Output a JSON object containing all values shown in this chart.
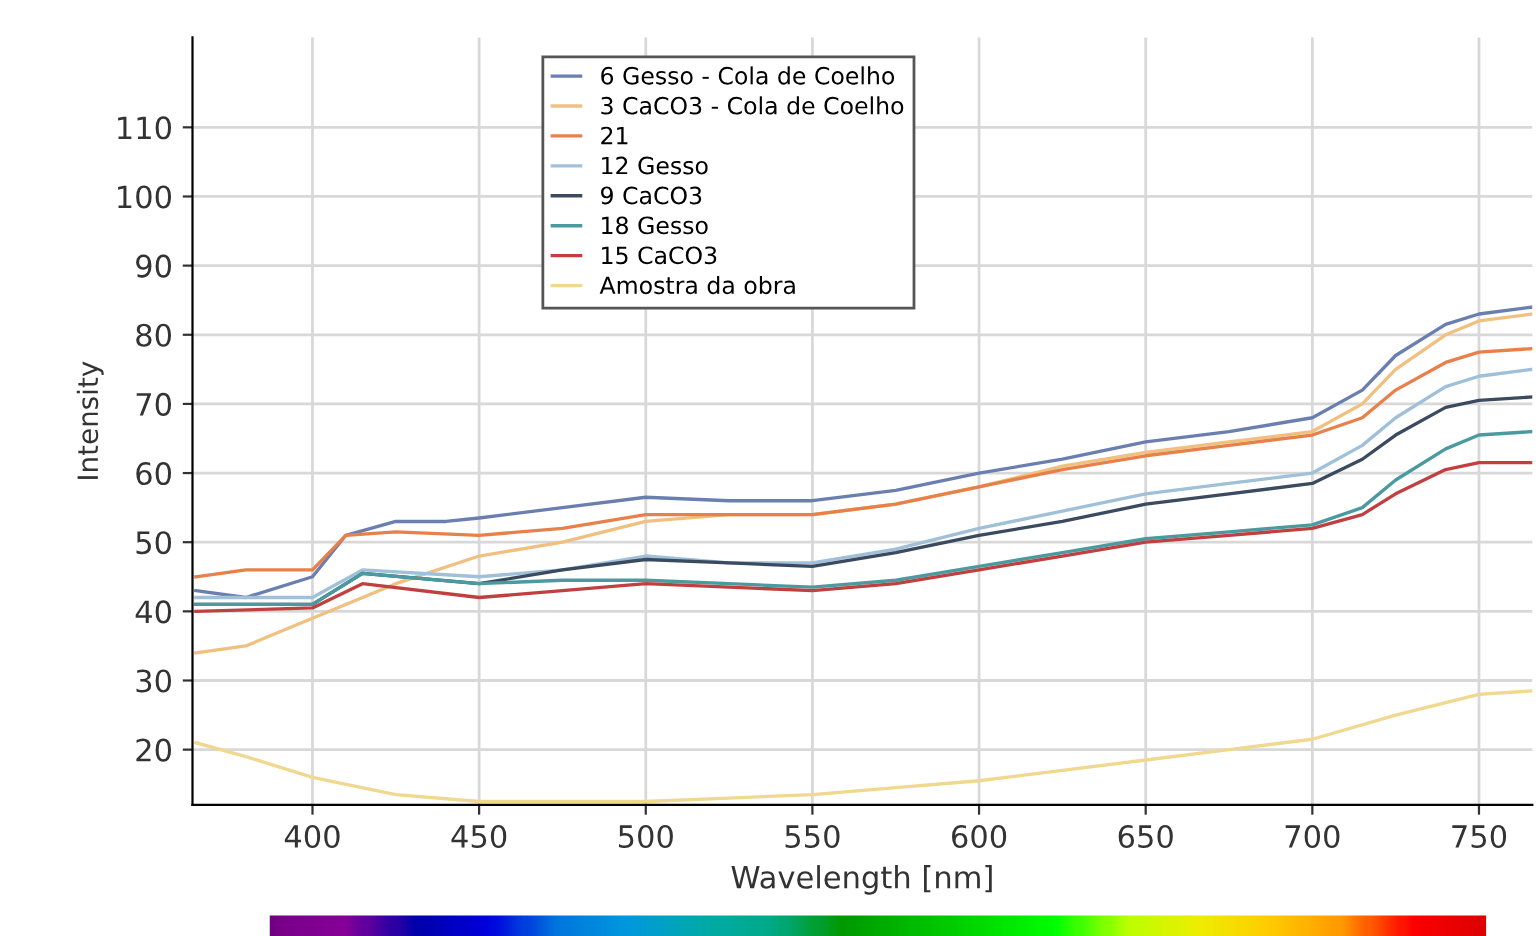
{
  "chart_data": {
    "type": "line",
    "xlabel": "Wavelength [nm]",
    "ylabel": "Intensity",
    "xlim": [
      364,
      766
    ],
    "ylim": [
      12,
      123
    ],
    "xticks": [
      400,
      450,
      500,
      550,
      600,
      650,
      700,
      750
    ],
    "yticks": [
      20,
      30,
      40,
      50,
      60,
      70,
      80,
      90,
      100,
      110
    ],
    "grid": true,
    "legend": "top",
    "marker": "none",
    "line_style": "solid",
    "series": [
      {
        "name": "6 Gesso - Cola de Coelho",
        "color": "#6a7fb0",
        "x": [
          365,
          380,
          400,
          410,
          425,
          440,
          450,
          475,
          500,
          525,
          550,
          575,
          600,
          625,
          650,
          675,
          700,
          715,
          725,
          740,
          750,
          766
        ],
        "values": [
          43,
          42,
          45,
          51,
          53,
          53,
          53.5,
          55,
          56.5,
          56,
          56,
          57.5,
          60,
          62,
          64.5,
          66,
          68,
          72,
          77,
          81.5,
          83,
          84
        ]
      },
      {
        "name": "3 CaCO3 - Cola de Coelho",
        "color": "#f0c080",
        "x": [
          365,
          380,
          400,
          425,
          450,
          475,
          500,
          525,
          550,
          575,
          600,
          625,
          650,
          675,
          700,
          715,
          725,
          740,
          750,
          766
        ],
        "values": [
          34,
          35,
          39,
          44,
          48,
          50,
          53,
          54,
          54,
          55.5,
          58,
          61,
          63,
          64.5,
          66,
          70,
          75,
          80,
          82,
          83
        ]
      },
      {
        "name": "21",
        "color": "#e8804a",
        "x": [
          365,
          380,
          400,
          410,
          425,
          450,
          475,
          500,
          525,
          550,
          575,
          600,
          625,
          650,
          675,
          700,
          715,
          725,
          740,
          750,
          766
        ],
        "values": [
          45,
          46,
          46,
          51,
          51.5,
          51,
          52,
          54,
          54,
          54,
          55.5,
          58,
          60.5,
          62.5,
          64,
          65.5,
          68,
          72,
          76,
          77.5,
          78
        ]
      },
      {
        "name": "12 Gesso",
        "color": "#9fc0d8",
        "x": [
          365,
          400,
          415,
          450,
          475,
          500,
          525,
          550,
          575,
          600,
          625,
          650,
          675,
          700,
          715,
          725,
          740,
          750,
          766
        ],
        "values": [
          42,
          42,
          46,
          45,
          46,
          48,
          47,
          47,
          49,
          52,
          54.5,
          57,
          58.5,
          60,
          64,
          68,
          72.5,
          74,
          75
        ]
      },
      {
        "name": "9 CaCO3",
        "color": "#3c4a60",
        "x": [
          365,
          400,
          415,
          450,
          475,
          500,
          525,
          550,
          575,
          600,
          625,
          650,
          675,
          700,
          715,
          725,
          740,
          750,
          766
        ],
        "values": [
          41,
          41,
          45.5,
          44,
          46,
          47.5,
          47,
          46.5,
          48.5,
          51,
          53,
          55.5,
          57,
          58.5,
          62,
          65.5,
          69.5,
          70.5,
          71
        ]
      },
      {
        "name": "18 Gesso",
        "color": "#4a9aa0",
        "x": [
          365,
          400,
          415,
          450,
          475,
          500,
          525,
          550,
          575,
          600,
          625,
          650,
          675,
          700,
          715,
          725,
          740,
          750,
          766
        ],
        "values": [
          41,
          41,
          45.5,
          44,
          44.5,
          44.5,
          44,
          43.5,
          44.5,
          46.5,
          48.5,
          50.5,
          51.5,
          52.5,
          55,
          59,
          63.5,
          65.5,
          66
        ]
      },
      {
        "name": "15 CaCO3",
        "color": "#c04040",
        "x": [
          365,
          400,
          415,
          450,
          475,
          500,
          525,
          550,
          575,
          600,
          625,
          650,
          675,
          700,
          715,
          725,
          740,
          750,
          766
        ],
        "values": [
          40,
          40.5,
          44,
          42,
          43,
          44,
          43.5,
          43,
          44,
          46,
          48,
          50,
          51,
          52,
          54,
          57,
          60.5,
          61.5,
          61.5
        ]
      },
      {
        "name": "Amostra da obra",
        "color": "#f0d890",
        "x": [
          365,
          380,
          400,
          425,
          450,
          475,
          500,
          525,
          550,
          575,
          600,
          625,
          650,
          675,
          700,
          725,
          750,
          766
        ],
        "values": [
          21,
          19,
          16,
          13.5,
          12.5,
          12.5,
          12.5,
          13,
          13.5,
          14.5,
          15.5,
          17,
          18.5,
          20,
          21.5,
          25,
          28,
          28.5
        ]
      }
    ]
  }
}
